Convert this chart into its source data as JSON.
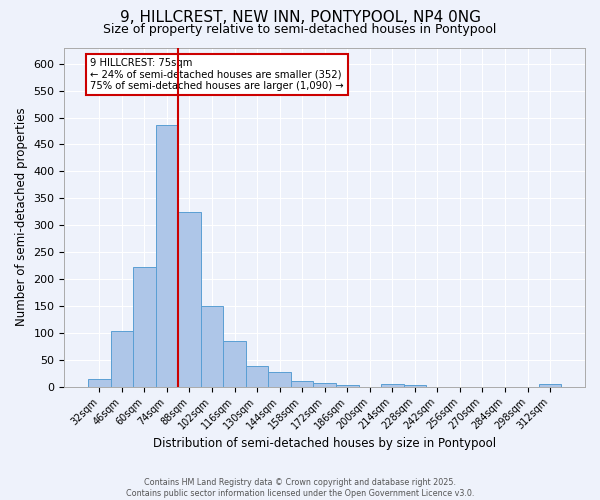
{
  "title": "9, HILLCREST, NEW INN, PONTYPOOL, NP4 0NG",
  "subtitle": "Size of property relative to semi-detached houses in Pontypool",
  "xlabel": "Distribution of semi-detached houses by size in Pontypool",
  "ylabel": "Number of semi-detached properties",
  "footer_line1": "Contains HM Land Registry data © Crown copyright and database right 2025.",
  "footer_line2": "Contains public sector information licensed under the Open Government Licence v3.0.",
  "annotation_title": "9 HILLCREST: 75sqm",
  "annotation_line1": "← 24% of semi-detached houses are smaller (352)",
  "annotation_line2": "75% of semi-detached houses are larger (1,090) →",
  "bar_categories": [
    "32sqm",
    "46sqm",
    "60sqm",
    "74sqm",
    "88sqm",
    "102sqm",
    "116sqm",
    "130sqm",
    "144sqm",
    "158sqm",
    "172sqm",
    "186sqm",
    "200sqm",
    "214sqm",
    "228sqm",
    "242sqm",
    "256sqm",
    "270sqm",
    "284sqm",
    "298sqm",
    "312sqm"
  ],
  "bar_values": [
    15,
    103,
    222,
    486,
    325,
    150,
    85,
    38,
    27,
    11,
    7,
    4,
    0,
    5,
    4,
    0,
    0,
    0,
    0,
    0,
    5
  ],
  "bar_color": "#aec6e8",
  "bar_edge_color": "#5a9fd4",
  "bar_width": 1.0,
  "vline_x": 3.5,
  "vline_color": "#cc0000",
  "ylim": [
    0,
    630
  ],
  "yticks": [
    0,
    50,
    100,
    150,
    200,
    250,
    300,
    350,
    400,
    450,
    500,
    550,
    600
  ],
  "bg_color": "#eef2fb",
  "grid_color": "#ffffff",
  "annotation_box_color": "#ffffff",
  "annotation_box_edge": "#cc0000",
  "title_fontsize": 11,
  "subtitle_fontsize": 9
}
